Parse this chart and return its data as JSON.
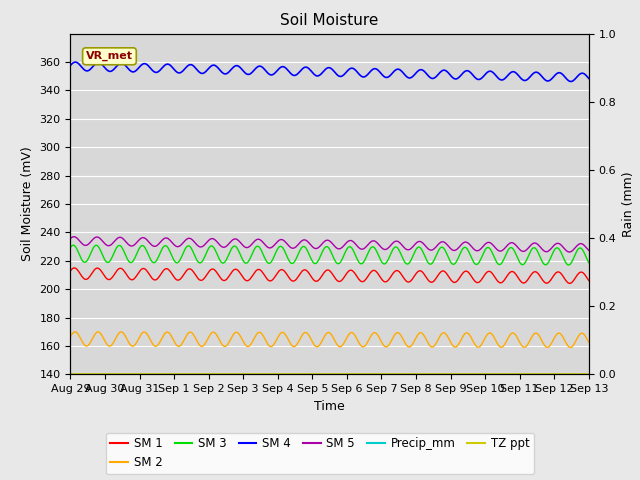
{
  "title": "Soil Moisture",
  "xlabel": "Time",
  "ylabel_left": "Soil Moisture (mV)",
  "ylabel_right": "Rain (mm)",
  "ylim_left": [
    140,
    380
  ],
  "ylim_right": [
    0.0,
    1.0
  ],
  "yticks_left": [
    140,
    160,
    180,
    200,
    220,
    240,
    260,
    280,
    300,
    320,
    340,
    360
  ],
  "yticks_right": [
    0.0,
    0.2,
    0.4,
    0.6,
    0.8,
    1.0
  ],
  "n_points": 720,
  "sm1_base": 211,
  "sm1_amp": 4,
  "sm1_trend": -3,
  "sm2_base": 165,
  "sm2_amp": 5,
  "sm2_trend": -1,
  "sm3_base": 225,
  "sm3_amp": 6,
  "sm3_trend": -2,
  "sm4_base": 357,
  "sm4_amp": 3,
  "sm4_trend": -8,
  "sm5_base": 234,
  "sm5_amp": 3,
  "sm5_trend": -5,
  "tz_base": 140,
  "precip_base": 0.0,
  "sm1_color": "#ff0000",
  "sm2_color": "#ffaa00",
  "sm3_color": "#00dd00",
  "sm4_color": "#0000ff",
  "sm5_color": "#aa00aa",
  "precip_color": "#00cccc",
  "tz_color": "#cccc00",
  "bg_color": "#d8d8d8",
  "annotation_text": "VR_met",
  "grid_color": "#ffffff",
  "tick_label_fontsize": 8,
  "axis_label_fontsize": 9,
  "title_fontsize": 11,
  "xtick_labels": [
    "Aug 29",
    "Aug 30",
    "Aug 31",
    "Sep 1",
    "Sep 2",
    "Sep 3",
    "Sep 4",
    "Sep 5",
    "Sep 6",
    "Sep 7",
    "Sep 8",
    "Sep 9",
    "Sep 10",
    "Sep 11",
    "Sep 12",
    "Sep 13"
  ]
}
